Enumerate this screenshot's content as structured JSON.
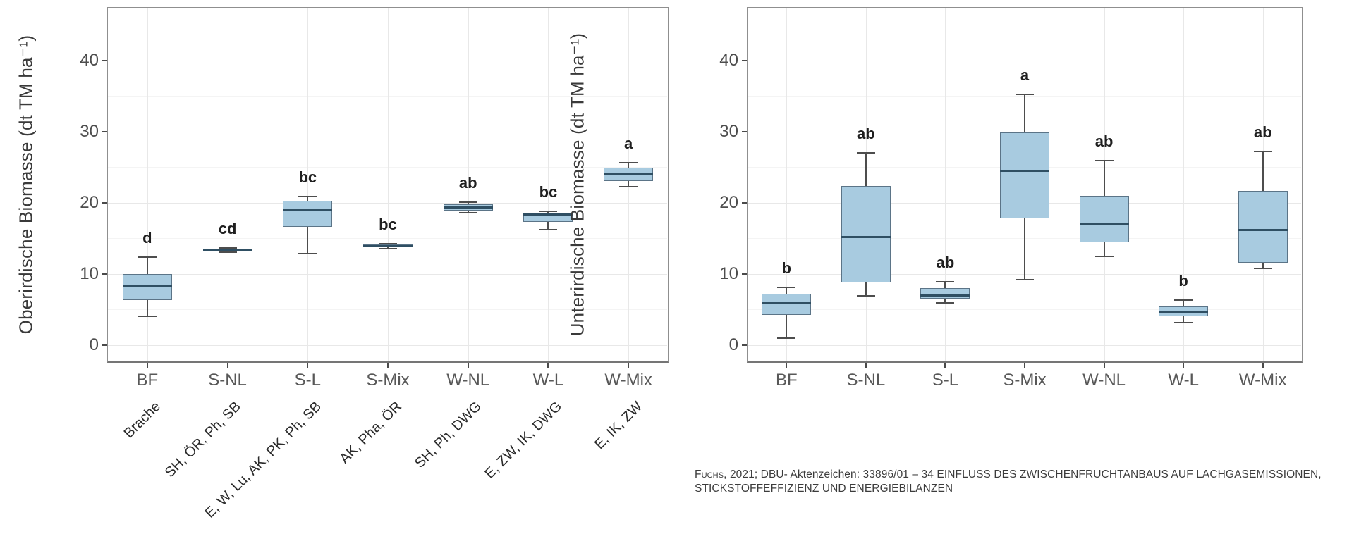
{
  "colors": {
    "box_fill": "#a8cbe0",
    "box_border": "#5b7487",
    "median": "#2f4f63",
    "whisker": "#4d4d4d",
    "grid_major": "#e8e8e8",
    "grid_minor": "#f4f4f4",
    "panel_border": "#8f8f8f",
    "significance_letter": "#1f1f1f"
  },
  "chart_data": [
    {
      "type": "boxplot",
      "title": "",
      "ylabel": "Oberirdische Biomasse (dt TM ha⁻¹)",
      "xlabel": "",
      "ylim": [
        -2.5,
        47.5
      ],
      "yticks": [
        0,
        10,
        20,
        30,
        40
      ],
      "grid": "horizontal major+minor, vertical major at categories",
      "legend": "none",
      "categories": [
        "BF",
        "S-NL",
        "S-L",
        "S-Mix",
        "W-NL",
        "W-L",
        "W-Mix"
      ],
      "category_sublabels": [
        "Brache",
        "SH, ÖR, Ph, SB",
        "E, W, Lu, AK, PK, Ph, SB",
        "AK, Pha, ÖR",
        "SH, Ph, DWG",
        "E, ZW, IK, DWG",
        "E, IK, ZW"
      ],
      "significance_letters": [
        "d",
        "cd",
        "bc",
        "bc",
        "ab",
        "bc",
        "a"
      ],
      "series": [
        {
          "name": "Oberirdische Biomasse",
          "stats": [
            {
              "whisker_low": 4.0,
              "q1": 6.3,
              "median": 8.2,
              "q3": 10.0,
              "whisker_high": 12.4
            },
            {
              "whisker_low": 13.0,
              "q1": 13.2,
              "median": 13.35,
              "q3": 13.55,
              "whisker_high": 13.65
            },
            {
              "whisker_low": 12.8,
              "q1": 16.6,
              "median": 19.0,
              "q3": 20.3,
              "whisker_high": 20.9
            },
            {
              "whisker_low": 13.5,
              "q1": 13.75,
              "median": 13.9,
              "q3": 14.1,
              "whisker_high": 14.2
            },
            {
              "whisker_low": 18.6,
              "q1": 18.9,
              "median": 19.3,
              "q3": 19.8,
              "whisker_high": 20.1
            },
            {
              "whisker_low": 16.2,
              "q1": 17.3,
              "median": 18.3,
              "q3": 18.6,
              "whisker_high": 18.8
            },
            {
              "whisker_low": 22.3,
              "q1": 23.0,
              "median": 24.1,
              "q3": 24.9,
              "whisker_high": 25.6
            }
          ]
        }
      ]
    },
    {
      "type": "boxplot",
      "title": "",
      "ylabel": "Unterirdische Biomasse (dt TM ha⁻¹)",
      "xlabel": "",
      "ylim": [
        -2.5,
        47.5
      ],
      "yticks": [
        0,
        10,
        20,
        30,
        40
      ],
      "grid": "horizontal major+minor, vertical major at categories",
      "legend": "none",
      "categories": [
        "BF",
        "S-NL",
        "S-L",
        "S-Mix",
        "W-NL",
        "W-L",
        "W-Mix"
      ],
      "category_sublabels": null,
      "significance_letters": [
        "b",
        "ab",
        "ab",
        "a",
        "ab",
        "b",
        "ab"
      ],
      "series": [
        {
          "name": "Unterirdische Biomasse",
          "stats": [
            {
              "whisker_low": 1.0,
              "q1": 4.2,
              "median": 5.9,
              "q3": 7.2,
              "whisker_high": 8.1
            },
            {
              "whisker_low": 6.9,
              "q1": 8.8,
              "median": 15.2,
              "q3": 22.4,
              "whisker_high": 27.0
            },
            {
              "whisker_low": 5.9,
              "q1": 6.5,
              "median": 7.0,
              "q3": 8.0,
              "whisker_high": 8.9
            },
            {
              "whisker_low": 9.2,
              "q1": 17.8,
              "median": 24.5,
              "q3": 29.9,
              "whisker_high": 35.2
            },
            {
              "whisker_low": 12.5,
              "q1": 14.4,
              "median": 17.1,
              "q3": 21.0,
              "whisker_high": 25.9
            },
            {
              "whisker_low": 3.1,
              "q1": 4.0,
              "median": 4.7,
              "q3": 5.4,
              "whisker_high": 6.3
            },
            {
              "whisker_low": 10.8,
              "q1": 11.6,
              "median": 16.2,
              "q3": 21.7,
              "whisker_high": 27.2
            }
          ]
        }
      ]
    }
  ],
  "caption": {
    "author": "Fuchs",
    "line1_rest": ", 2021; DBU- Aktenzeichen: 33896/01 – 34 EINFLUSS DES ZWISCHENFRUCHTANBAUS AUF LACHGASEMISSIONEN,",
    "line2": "STICKSTOFFEFFIZIENZ UND ENERGIEBILANZEN"
  }
}
